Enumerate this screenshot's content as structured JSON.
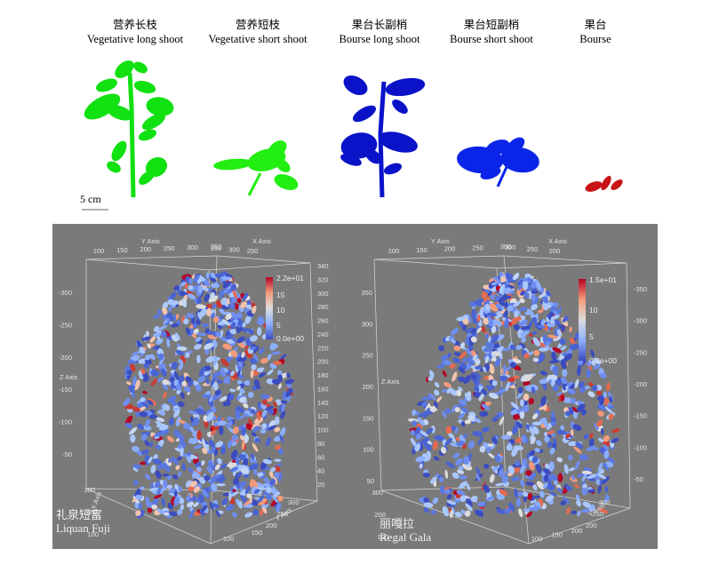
{
  "shoot_types": [
    {
      "cn": "营养长枝",
      "en": "Vegetative long shoot",
      "color": "#11e011"
    },
    {
      "cn": "营养短枝",
      "en": "Vegetative short shoot",
      "color": "#22ee11"
    },
    {
      "cn": "果台长副梢",
      "en": "Bourse long shoot",
      "color": "#0a13c8"
    },
    {
      "cn": "果台短副梢",
      "en": "Bourse short shoot",
      "color": "#0a24e8"
    },
    {
      "cn": "果台",
      "en": "Bourse",
      "color": "#c81414"
    }
  ],
  "scale_bar": "5 cm",
  "panels": [
    {
      "cultivar_cn": "礼泉短富",
      "cultivar_en": "Liquan Fuji",
      "y_axis_title": "Y Axis",
      "x_axis_title": "X Axis",
      "z_axis_title": "Z Axis",
      "top_y_ticks": [
        "100",
        "150",
        "200",
        "250",
        "300",
        "350"
      ],
      "top_x_ticks": [
        "350",
        "300",
        "250"
      ],
      "right_z_ticks": [
        "340",
        "320",
        "300",
        "280",
        "260",
        "240",
        "220",
        "200",
        "180",
        "160",
        "140",
        "120",
        "100",
        "80",
        "60",
        "40",
        "20"
      ],
      "left_z_ticks": [
        "-300",
        "-250",
        "-200",
        "-150",
        "-100",
        "-50"
      ],
      "left_x_ticks": [
        "300",
        "200",
        "100"
      ],
      "bottom_x_ticks": [
        "300",
        "250",
        "200"
      ],
      "bottom_y_ticks": [
        "100",
        "150"
      ],
      "colorbar": {
        "max": "2.2e+01",
        "ticks": [
          "15",
          "10",
          "5"
        ],
        "min": "0.0e+00"
      }
    },
    {
      "cultivar_cn": "丽嘎拉",
      "cultivar_en": "Regal Gala",
      "y_axis_title": "Y Axis",
      "x_axis_title": "X Axis",
      "z_axis_title": "Z Axis",
      "top_y_ticks": [
        "100",
        "150",
        "200",
        "250",
        "300"
      ],
      "top_x_ticks": [
        "300",
        "250",
        "200"
      ],
      "right_z_ticks": [
        "-350",
        "-300",
        "-250",
        "-200",
        "-150",
        "-100",
        "-50"
      ],
      "left_z_ticks": [
        "350",
        "300",
        "250",
        "200",
        "150",
        "100",
        "50"
      ],
      "left_x_ticks": [
        "300",
        "200",
        "100"
      ],
      "bottom_x_ticks": [
        "300",
        "250",
        "200"
      ],
      "bottom_y_ticks": [
        "100",
        "150",
        "200"
      ],
      "colorbar": {
        "max": "1.5e+01",
        "ticks": [
          "10",
          "5"
        ],
        "min": "0.0e+00"
      }
    }
  ]
}
